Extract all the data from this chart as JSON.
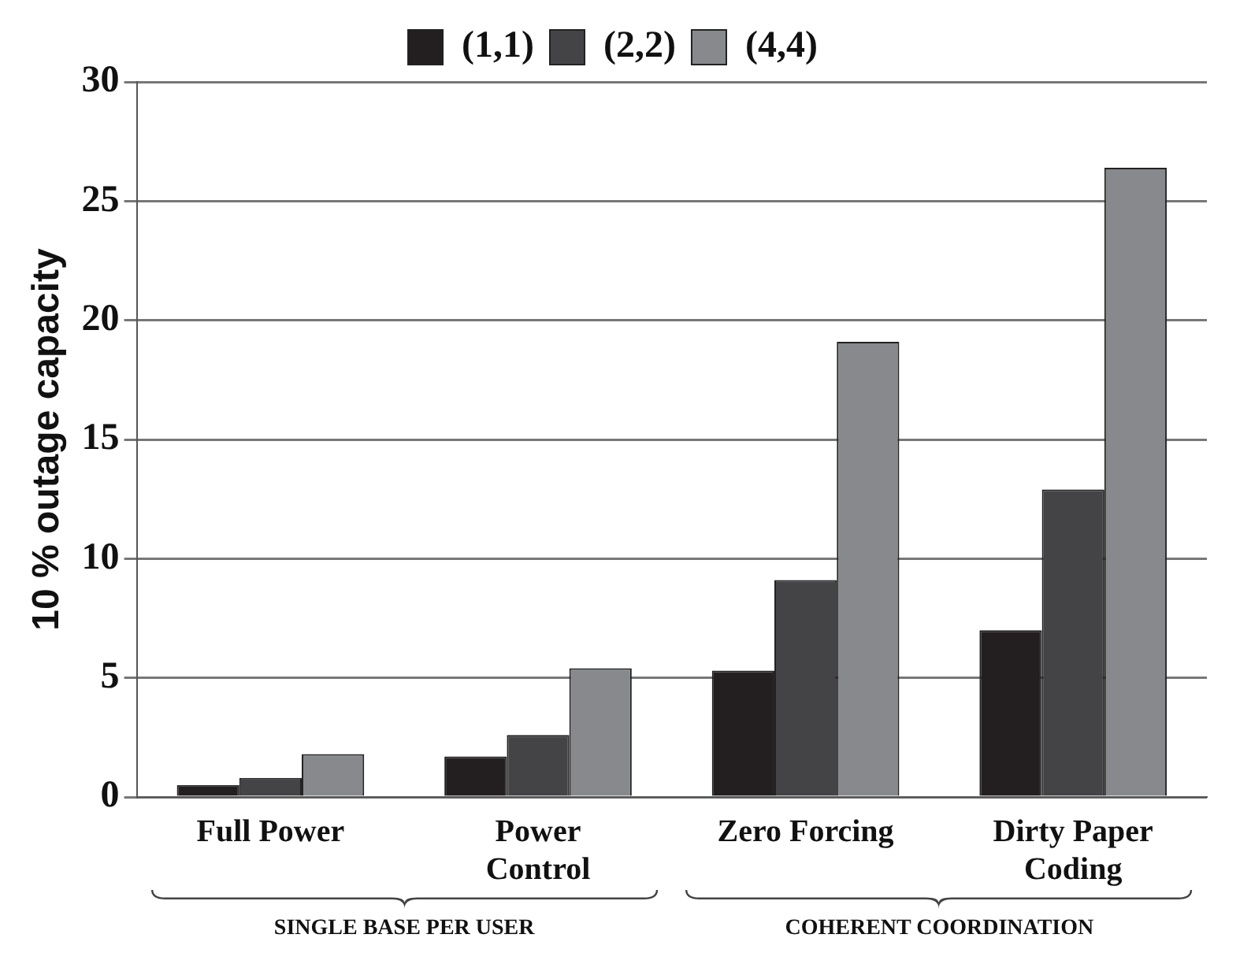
{
  "chart_data": {
    "type": "bar",
    "ylabel": "10 % outage capacity",
    "categories": [
      "Full Power",
      "Power Control",
      "Zero Forcing",
      "Dirty Paper Coding"
    ],
    "series": [
      {
        "name": "(1,1)",
        "color": "#231f20",
        "values": [
          0.5,
          1.7,
          5.3,
          7.0
        ]
      },
      {
        "name": "(2,2)",
        "color": "#444446",
        "values": [
          0.8,
          2.6,
          9.1,
          12.9
        ]
      },
      {
        "name": "(4,4)",
        "color": "#88898c",
        "values": [
          1.8,
          5.4,
          19.1,
          26.4
        ]
      }
    ],
    "ylim": [
      0,
      30
    ],
    "yticks": [
      0,
      5,
      10,
      15,
      20,
      25,
      30
    ],
    "grid": "y",
    "legend": "top",
    "annotations": [
      "SINGLE BASE PER USER",
      "COHERENT COORDINATION"
    ]
  }
}
